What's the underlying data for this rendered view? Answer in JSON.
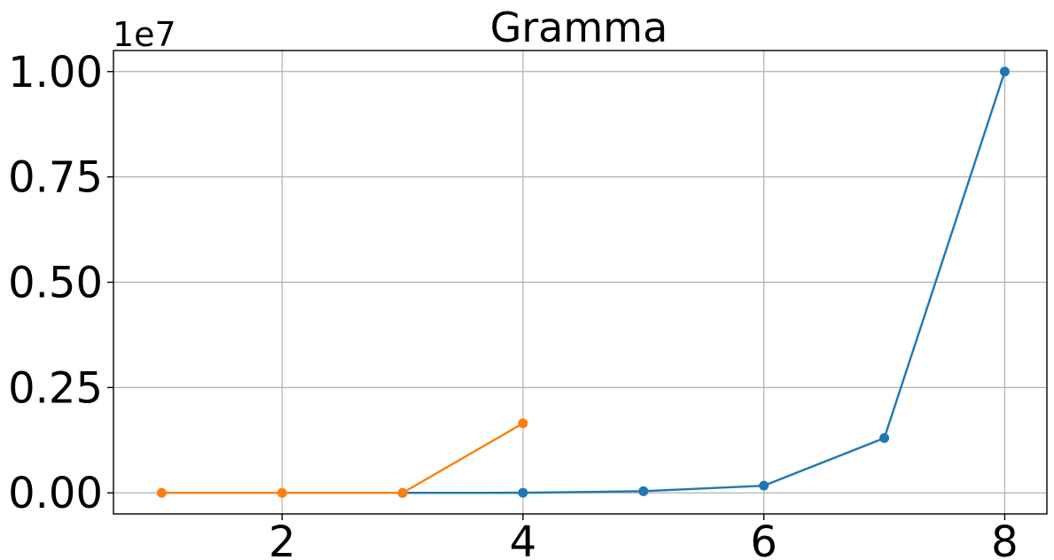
{
  "chart_data": {
    "type": "line",
    "title": "Gramma",
    "xlabel": "",
    "ylabel": "",
    "y_offset_label": "1e7",
    "x_ticks": [
      2,
      4,
      6,
      8
    ],
    "x_tick_labels": [
      "2",
      "4",
      "6",
      "8"
    ],
    "y_ticks": [
      0,
      2500000,
      5000000,
      7500000,
      10000000
    ],
    "y_tick_labels": [
      "0.00",
      "0.25",
      "0.50",
      "0.75",
      "1.00"
    ],
    "xlim": [
      0.6,
      8.35
    ],
    "ylim": [
      -500000,
      10500000
    ],
    "grid": true,
    "series": [
      {
        "color": "#1f77b4",
        "x": [
          3,
          4,
          5,
          6,
          7,
          8
        ],
        "y": [
          0,
          2000,
          40000,
          170000,
          1300000,
          10000000
        ]
      },
      {
        "color": "#ff7f0e",
        "x": [
          1,
          2,
          3,
          4
        ],
        "y": [
          0,
          0,
          0,
          1650000
        ]
      }
    ]
  }
}
